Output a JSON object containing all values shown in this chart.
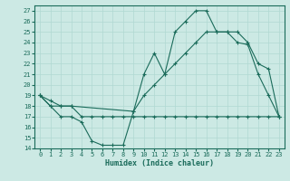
{
  "xlabel": "Humidex (Indice chaleur)",
  "bg_color": "#cce9e4",
  "line_color": "#1a6b5a",
  "grid_color": "#b0d8d2",
  "xlim": [
    -0.5,
    23.5
  ],
  "ylim": [
    14,
    27.5
  ],
  "xticks": [
    0,
    1,
    2,
    3,
    4,
    5,
    6,
    7,
    8,
    9,
    10,
    11,
    12,
    13,
    14,
    15,
    16,
    17,
    18,
    19,
    20,
    21,
    22,
    23
  ],
  "yticks": [
    14,
    15,
    16,
    17,
    18,
    19,
    20,
    21,
    22,
    23,
    24,
    25,
    26,
    27
  ],
  "line1_x": [
    0,
    1,
    2,
    3,
    4,
    5,
    6,
    7,
    8,
    9,
    10,
    11,
    12,
    13,
    14,
    15,
    16,
    17,
    18,
    19,
    20,
    21,
    22,
    23
  ],
  "line1_y": [
    19,
    18,
    17,
    17,
    16.5,
    14.7,
    14.3,
    14.3,
    14.3,
    17.5,
    21,
    23,
    21,
    25,
    26,
    27,
    27,
    25,
    25,
    24,
    23.8,
    21,
    19,
    17
  ],
  "line2_x": [
    0,
    1,
    2,
    3,
    9,
    10,
    11,
    12,
    13,
    14,
    15,
    16,
    17,
    18,
    19,
    20,
    21,
    22,
    23
  ],
  "line2_y": [
    19,
    18.5,
    18,
    18,
    17.5,
    19,
    20,
    21,
    22,
    23,
    24,
    25,
    25,
    25,
    25,
    24,
    22,
    21.5,
    17
  ],
  "line3_x": [
    0,
    1,
    2,
    3,
    4,
    5,
    6,
    7,
    8,
    9,
    10,
    11,
    12,
    13,
    14,
    15,
    16,
    17,
    18,
    19,
    20,
    21,
    22,
    23
  ],
  "line3_y": [
    19,
    18,
    18,
    18,
    17,
    17,
    17,
    17,
    17,
    17,
    17,
    17,
    17,
    17,
    17,
    17,
    17,
    17,
    17,
    17,
    17,
    17,
    17,
    17
  ]
}
